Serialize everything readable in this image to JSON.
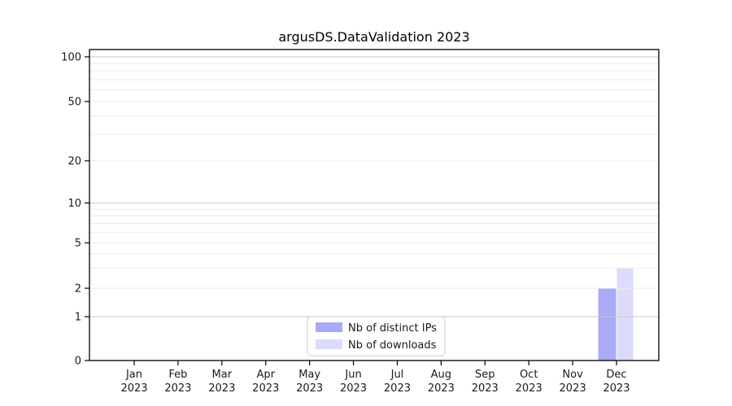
{
  "figure": {
    "background": "#ffffff"
  },
  "chart_data": {
    "type": "bar",
    "title": "argusDS.DataValidation 2023",
    "x_categories": [
      "Jan",
      "Feb",
      "Mar",
      "Apr",
      "May",
      "Jun",
      "Jul",
      "Aug",
      "Sep",
      "Oct",
      "Nov",
      "Dec"
    ],
    "x_year_label": "2023",
    "series": [
      {
        "name": "Nb of distinct IPs",
        "color": "#aaaaf7",
        "values": [
          0,
          0,
          0,
          0,
          0,
          0,
          0,
          0,
          0,
          0,
          0,
          2
        ]
      },
      {
        "name": "Nb of downloads",
        "color": "#dcdcfa",
        "values": [
          0,
          0,
          0,
          0,
          0,
          0,
          0,
          0,
          0,
          0,
          0,
          3
        ]
      }
    ],
    "y_axis": {
      "scale": "symlog",
      "tick_values": [
        0,
        1,
        2,
        5,
        10,
        20,
        50,
        100
      ],
      "major_gridline_values": [
        1,
        10,
        100
      ],
      "minor_gridline_values": [
        2,
        3,
        4,
        5,
        6,
        7,
        8,
        9,
        20,
        30,
        40,
        50,
        60,
        70,
        80,
        90
      ],
      "ylim": [
        0,
        110
      ]
    },
    "legend": {
      "position": "lower center",
      "entries": [
        "Nb of distinct IPs",
        "Nb of downloads"
      ]
    },
    "grid": true,
    "colors": {
      "major_grid": "#c9c9c9",
      "minor_grid": "#ebebeb",
      "spine": "#000000",
      "legend_border": "#cccccc",
      "legend_background": "#ffffff"
    }
  }
}
